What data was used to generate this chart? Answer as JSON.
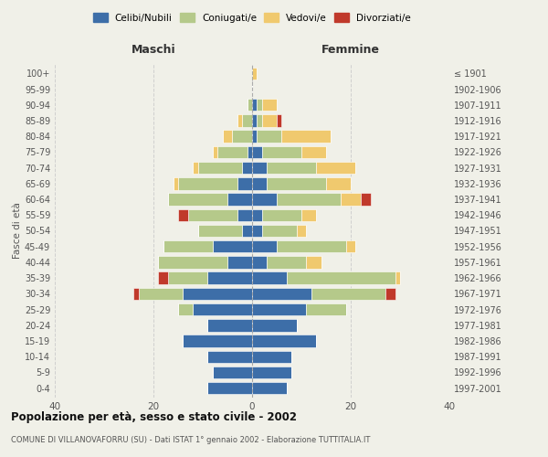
{
  "age_groups": [
    "0-4",
    "5-9",
    "10-14",
    "15-19",
    "20-24",
    "25-29",
    "30-34",
    "35-39",
    "40-44",
    "45-49",
    "50-54",
    "55-59",
    "60-64",
    "65-69",
    "70-74",
    "75-79",
    "80-84",
    "85-89",
    "90-94",
    "95-99",
    "100+"
  ],
  "birth_years": [
    "1997-2001",
    "1992-1996",
    "1987-1991",
    "1982-1986",
    "1977-1981",
    "1972-1976",
    "1967-1971",
    "1962-1966",
    "1957-1961",
    "1952-1956",
    "1947-1951",
    "1942-1946",
    "1937-1941",
    "1932-1936",
    "1927-1931",
    "1922-1926",
    "1917-1921",
    "1912-1916",
    "1907-1911",
    "1902-1906",
    "≤ 1901"
  ],
  "male_celibi": [
    9,
    8,
    9,
    14,
    9,
    12,
    14,
    9,
    5,
    8,
    2,
    3,
    5,
    3,
    2,
    1,
    0,
    0,
    0,
    0,
    0
  ],
  "male_coniugati": [
    0,
    0,
    0,
    0,
    0,
    3,
    9,
    8,
    14,
    10,
    9,
    10,
    12,
    12,
    9,
    6,
    4,
    2,
    1,
    0,
    0
  ],
  "male_vedovi": [
    0,
    0,
    0,
    0,
    0,
    0,
    0,
    0,
    0,
    0,
    0,
    0,
    0,
    1,
    1,
    1,
    2,
    1,
    0,
    0,
    0
  ],
  "male_divorziati": [
    0,
    0,
    0,
    0,
    0,
    0,
    1,
    2,
    0,
    0,
    0,
    2,
    0,
    0,
    0,
    0,
    0,
    0,
    0,
    0,
    0
  ],
  "female_celibi": [
    7,
    8,
    8,
    13,
    9,
    11,
    12,
    7,
    3,
    5,
    2,
    2,
    5,
    3,
    3,
    2,
    1,
    1,
    1,
    0,
    0
  ],
  "female_coniugati": [
    0,
    0,
    0,
    0,
    0,
    8,
    15,
    22,
    8,
    14,
    7,
    8,
    13,
    12,
    10,
    8,
    5,
    1,
    1,
    0,
    0
  ],
  "female_vedovi": [
    0,
    0,
    0,
    0,
    0,
    0,
    0,
    1,
    3,
    2,
    2,
    3,
    4,
    5,
    8,
    5,
    10,
    3,
    3,
    0,
    1
  ],
  "female_divorziati": [
    0,
    0,
    0,
    0,
    0,
    0,
    2,
    0,
    0,
    0,
    0,
    0,
    2,
    0,
    0,
    0,
    0,
    1,
    0,
    0,
    0
  ],
  "color_celibi": "#3d6ea8",
  "color_coniugati": "#b5c98a",
  "color_vedovi": "#f0c96e",
  "color_divorziati": "#c0392b",
  "title_main": "Popolazione per età, sesso e stato civile - 2002",
  "title_sub": "COMUNE DI VILLANOVAFORRU (SU) - Dati ISTAT 1° gennaio 2002 - Elaborazione TUTTITALIA.IT",
  "xlabel_left": "Maschi",
  "xlabel_right": "Femmine",
  "ylabel_left": "Fasce di età",
  "xlim": 40,
  "bg_color": "#f0f0e8",
  "grid_color": "#cccccc"
}
